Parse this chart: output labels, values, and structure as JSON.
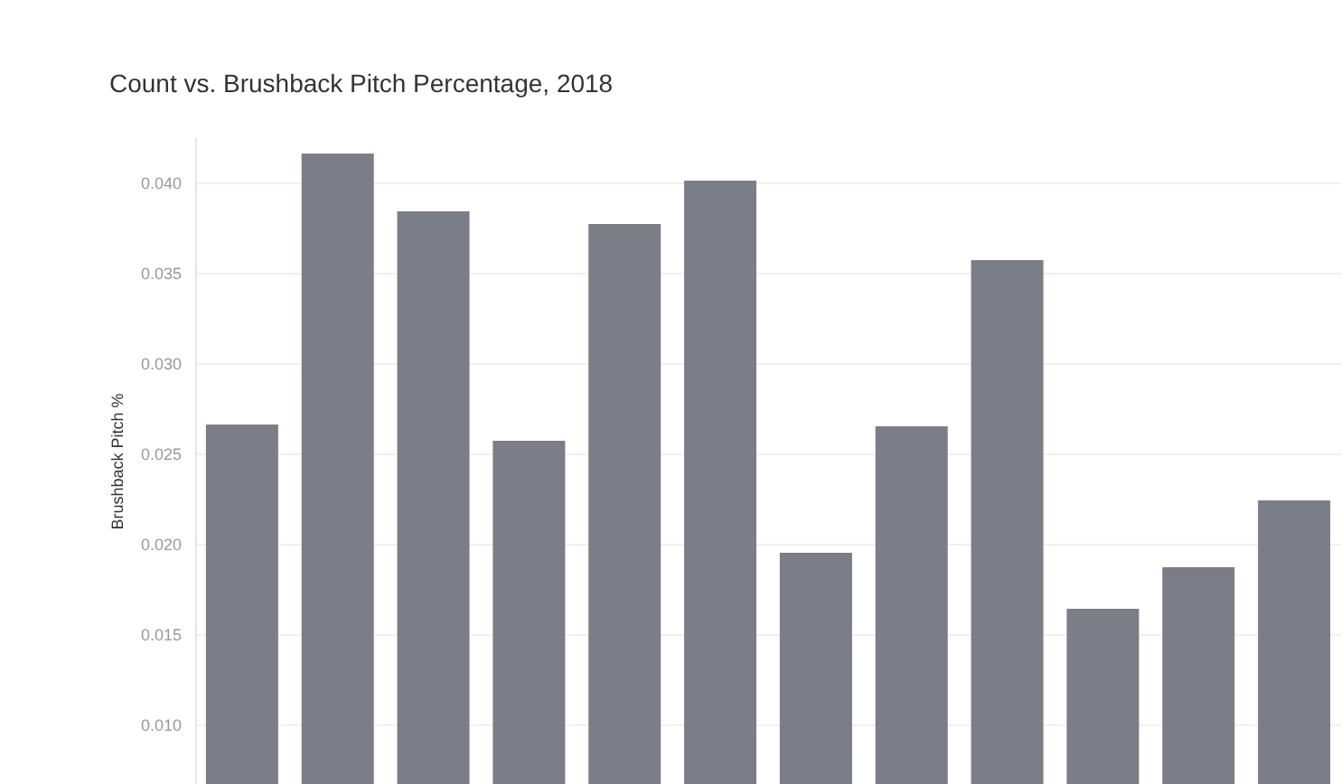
{
  "chart_data": {
    "type": "bar",
    "title": "Count vs. Brushback Pitch Percentage, 2018",
    "ylabel": "Brushback Pitch %",
    "categories": [
      null,
      null,
      null,
      null,
      null,
      null,
      null,
      null,
      null,
      null,
      null,
      null
    ],
    "values": [
      0.0266,
      0.0416,
      0.0384,
      0.0257,
      0.0377,
      0.0401,
      0.0195,
      0.0265,
      0.0357,
      0.0164,
      0.0187,
      0.0224
    ],
    "color": "#7b7e87",
    "ylim": [
      0.0067,
      0.0425
    ],
    "yticks": [
      {
        "value": 0.01,
        "label": "0.010"
      },
      {
        "value": 0.015,
        "label": "0.015"
      },
      {
        "value": 0.02,
        "label": "0.020"
      },
      {
        "value": 0.025,
        "label": "0.025"
      },
      {
        "value": 0.03,
        "label": "0.030"
      },
      {
        "value": 0.035,
        "label": "0.035"
      },
      {
        "value": 0.04,
        "label": "0.040"
      }
    ],
    "grid": true,
    "tick_labels": "y"
  }
}
